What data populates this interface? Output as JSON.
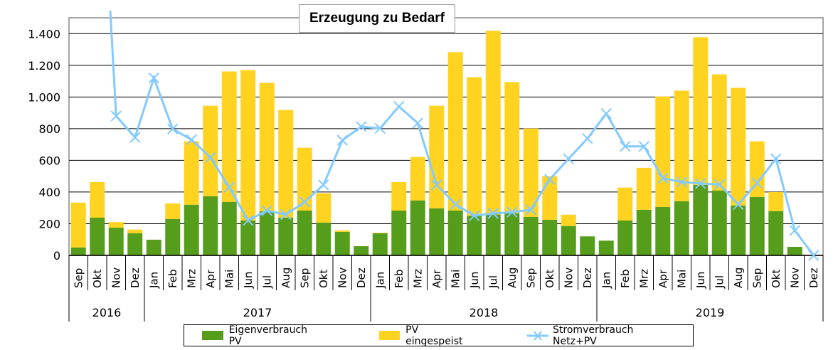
{
  "chart_data": {
    "type": "bar",
    "stacked": true,
    "title": "Erzeugung zu Bedarf",
    "xlabel": "",
    "ylabel": "",
    "ylim": [
      0,
      1500
    ],
    "yticks": [
      0,
      200,
      400,
      600,
      800,
      1000,
      1200,
      1400
    ],
    "ytick_labels": [
      "0",
      "200",
      "400",
      "600",
      "800",
      "1.000",
      "1.200",
      "1.400"
    ],
    "grid": true,
    "legend_position": "bottom",
    "categories": [
      "Sep",
      "Okt",
      "Nov",
      "Dez",
      "Jan",
      "Feb",
      "Mrz",
      "Apr",
      "Mai",
      "Jun",
      "Jul",
      "Aug",
      "Sep",
      "Okt",
      "Nov",
      "Dez",
      "Jan",
      "Feb",
      "Mrz",
      "Apr",
      "Mai",
      "Jun",
      "Jul",
      "Aug",
      "Sep",
      "Okt",
      "Nov",
      "Dez",
      "Jan",
      "Feb",
      "Mrz",
      "Apr",
      "Mai",
      "Jun",
      "Jul",
      "Aug",
      "Sep",
      "Okt",
      "Nov",
      "Dez"
    ],
    "groups": [
      {
        "label": "2016",
        "count": 4
      },
      {
        "label": "2017",
        "count": 12
      },
      {
        "label": "2018",
        "count": 12
      },
      {
        "label": "2019",
        "count": 12
      }
    ],
    "series": [
      {
        "name": "Eigenverbrauch PV",
        "kind": "bar",
        "color": "#579d1c",
        "values": [
          50,
          238,
          175,
          140,
          99,
          230,
          320,
          373,
          338,
          220,
          279,
          238,
          283,
          207,
          149,
          58,
          140,
          283,
          347,
          297,
          283,
          250,
          258,
          265,
          243,
          225,
          185,
          120,
          93,
          220,
          288,
          306,
          342,
          445,
          410,
          315,
          369,
          279,
          54,
          0
        ]
      },
      {
        "name": "PV eingespeist",
        "kind": "bar",
        "color": "#ffd320",
        "values": [
          283,
          225,
          35,
          23,
          0,
          98,
          400,
          572,
          823,
          950,
          810,
          680,
          397,
          185,
          9,
          0,
          3,
          180,
          274,
          648,
          1000,
          875,
          1160,
          829,
          558,
          275,
          72,
          0,
          0,
          208,
          265,
          697,
          698,
          932,
          733,
          743,
          351,
          121,
          0,
          0
        ]
      },
      {
        "name": "Stromverbrauch Netz+PV",
        "kind": "line",
        "color": "#83caff",
        "values": [
          null,
          3000,
          880,
          745,
          1120,
          798,
          730,
          618,
          430,
          220,
          283,
          258,
          337,
          445,
          727,
          813,
          802,
          940,
          835,
          445,
          322,
          250,
          265,
          273,
          288,
          480,
          610,
          738,
          895,
          688,
          688,
          487,
          463,
          454,
          448,
          321,
          457,
          610,
          157,
          0
        ]
      }
    ]
  }
}
